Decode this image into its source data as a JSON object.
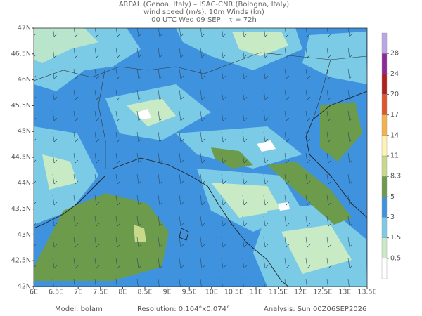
{
  "header": {
    "lines": [
      "ARPAL (Genoa, Italy)  –  ISAC-CNR (Bologna, Italy)",
      "wind speed (m/s), 10m Winds (kn)",
      "00 UTC Wed 09 SEP  –  τ = 72h"
    ]
  },
  "map": {
    "lon_lim": [
      6,
      13.5
    ],
    "lat_lim": [
      42,
      47
    ],
    "lon_ticks": [
      {
        "value": 6,
        "label": "6E"
      },
      {
        "value": 6.5,
        "label": "6.5E"
      },
      {
        "value": 7,
        "label": "7E"
      },
      {
        "value": 7.5,
        "label": "7.5E"
      },
      {
        "value": 8,
        "label": "8E"
      },
      {
        "value": 8.5,
        "label": "8.5E"
      },
      {
        "value": 9,
        "label": "9E"
      },
      {
        "value": 9.5,
        "label": "9.5E"
      },
      {
        "value": 10,
        "label": "10E"
      },
      {
        "value": 10.5,
        "label": "10.5E"
      },
      {
        "value": 11,
        "label": "11E"
      },
      {
        "value": 11.5,
        "label": "11.5E"
      },
      {
        "value": 12,
        "label": "12E"
      },
      {
        "value": 12.5,
        "label": "12.5E"
      },
      {
        "value": 13,
        "label": "13E"
      },
      {
        "value": 13.5,
        "label": "13.5E"
      }
    ],
    "lat_ticks": [
      {
        "value": 42,
        "label": "42N"
      },
      {
        "value": 42.5,
        "label": "42.5N"
      },
      {
        "value": 43,
        "label": "43N"
      },
      {
        "value": 43.5,
        "label": "43.5N"
      },
      {
        "value": 44,
        "label": "44N"
      },
      {
        "value": 44.5,
        "label": "44.5N"
      },
      {
        "value": 45,
        "label": "45N"
      },
      {
        "value": 45.5,
        "label": "45.5N"
      },
      {
        "value": 46,
        "label": "46N"
      },
      {
        "value": 46.5,
        "label": "46.5N"
      },
      {
        "value": 47,
        "label": "47N"
      }
    ]
  },
  "colorbar": {
    "levels": [
      0.5,
      1.5,
      3,
      5,
      8.3,
      11,
      14,
      17,
      20,
      24,
      28
    ],
    "colors": [
      "#ffffff",
      "#c8ebc6",
      "#7ccbe6",
      "#3f93de",
      "#6c9b4c",
      "#c8d98a",
      "#fff3b0",
      "#f2b24c",
      "#e0562c",
      "#b02020",
      "#8a2a9a",
      "#b9a6e6"
    ]
  },
  "footer": {
    "model": "Model: bolam",
    "resolution": "Resolution: 0.104°x0.074°",
    "analysis": "Analysis: Sun 00Z06SEP2026"
  }
}
